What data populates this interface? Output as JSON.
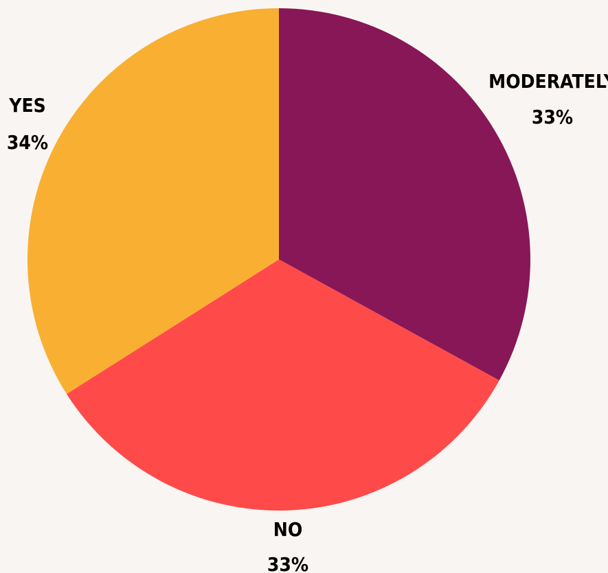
{
  "chart_data": {
    "type": "pie",
    "title": "",
    "start_angle_deg": 0,
    "direction": "clockwise",
    "slices": [
      {
        "label": "MODERATELY",
        "value": 33,
        "value_label": "33%",
        "color": "#871756"
      },
      {
        "label": "NO",
        "value": 33,
        "value_label": "33%",
        "color": "#ff4a4a"
      },
      {
        "label": "YES",
        "value": 34,
        "value_label": "34%",
        "color": "#f9af32"
      }
    ]
  },
  "colors": {
    "background": "#f9f5f2",
    "label_text": "#000000"
  }
}
